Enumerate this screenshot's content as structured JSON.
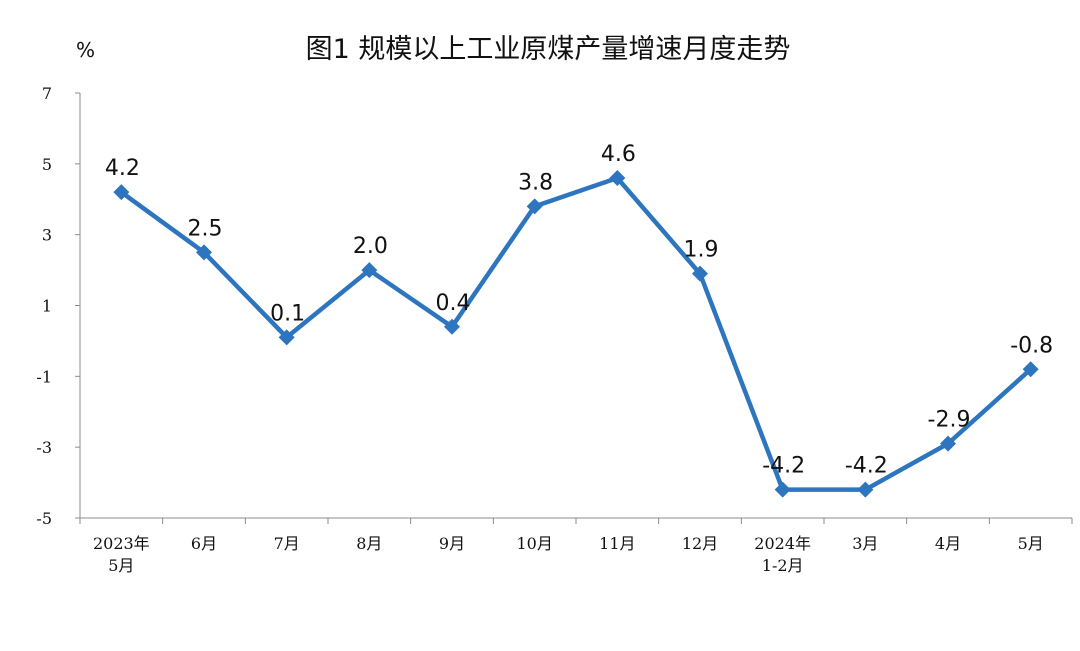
{
  "chart_data": {
    "type": "line",
    "title": "图1  规模以上工业原煤产量增速月度走势",
    "ylabel": "%",
    "ylim": [
      -5,
      7
    ],
    "yticks": [
      "7",
      "5",
      "3",
      "1",
      "-1",
      "-3",
      "-5"
    ],
    "categories": [
      [
        "2023年",
        "5月"
      ],
      [
        "6月"
      ],
      [
        "7月"
      ],
      [
        "8月"
      ],
      [
        "9月"
      ],
      [
        "10月"
      ],
      [
        "11月"
      ],
      [
        "12月"
      ],
      [
        "2024年",
        "1-2月"
      ],
      [
        "3月"
      ],
      [
        "4月"
      ],
      [
        "5月"
      ]
    ],
    "series": [
      {
        "values": [
          4.2,
          2.5,
          0.1,
          2.0,
          0.4,
          3.8,
          4.6,
          1.9,
          -4.2,
          -4.2,
          -2.9,
          -0.8
        ],
        "labels": [
          "4.2",
          "2.5",
          "0.1",
          "2.0",
          "0.4",
          "3.8",
          "4.6",
          "1.9",
          "-4.2",
          "-4.2",
          "-2.9",
          "-0.8"
        ],
        "color": "#2E75C0"
      }
    ],
    "grid": false,
    "legend": "none"
  }
}
